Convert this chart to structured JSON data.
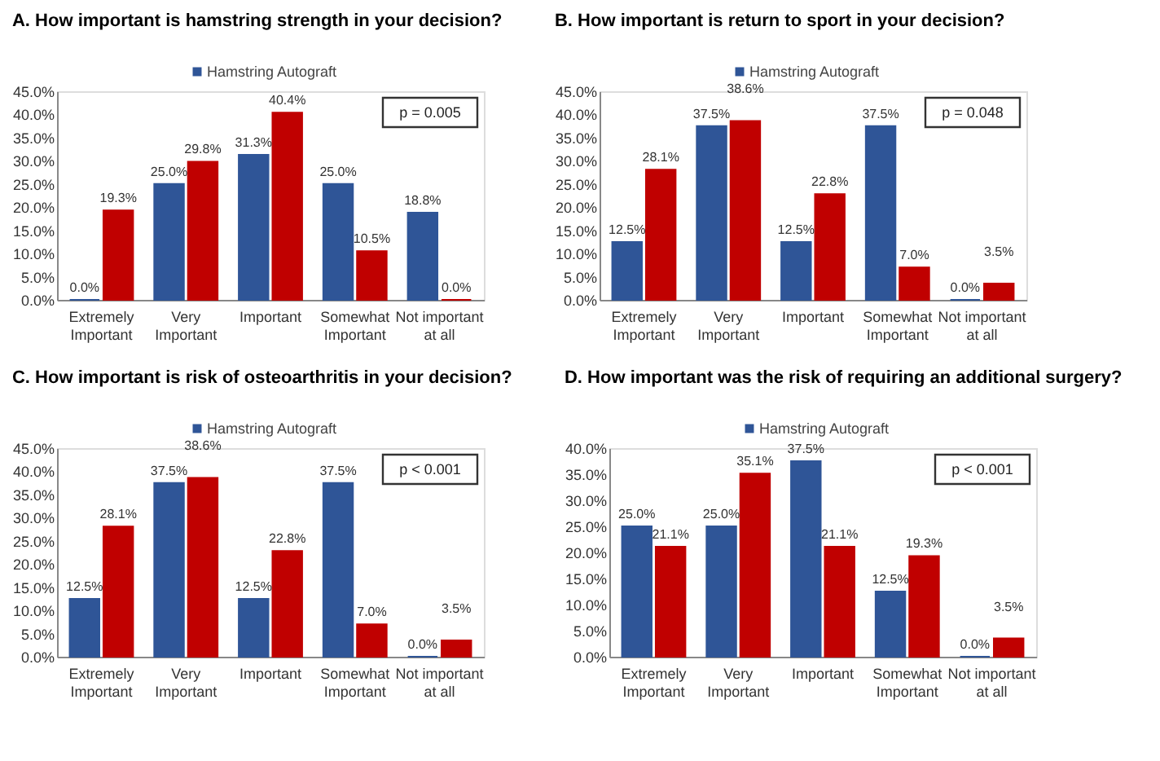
{
  "chart_data": [
    {
      "type": "bar",
      "title": "A. How important is hamstring strength in your decision?",
      "categories": [
        "Extremely Important",
        "Very Important",
        "Important",
        "Somewhat Important",
        "Not important at all"
      ],
      "ylim": [
        0,
        45
      ],
      "yticks": [
        {
          "value": 0,
          "label": "0.0%"
        },
        {
          "value": 5,
          "label": "5.0%"
        },
        {
          "value": 10,
          "label": "10.0%"
        },
        {
          "value": 15,
          "label": "15.0%"
        },
        {
          "value": 20,
          "label": "20.0%"
        },
        {
          "value": 25,
          "label": "25.0%"
        },
        {
          "value": 30,
          "label": "30.0%"
        },
        {
          "value": 35,
          "label": "35.0%"
        },
        {
          "value": 40,
          "label": "40.0%"
        },
        {
          "value": 45,
          "label": "45.0%"
        }
      ],
      "grid": false,
      "legend": "top",
      "annotations": [
        "p = 0.005"
      ],
      "series": [
        {
          "name": "Hamstring Autograft",
          "color": "#2f5597",
          "values": [
            0.0,
            25.0,
            31.3,
            25.0,
            18.8
          ],
          "value_labels": [
            "0.0%",
            "25.0%",
            "31.3%",
            "25.0%",
            "18.8%"
          ]
        },
        {
          "color": "#c00000",
          "values": [
            19.3,
            29.8,
            40.4,
            10.5,
            0.0
          ],
          "value_labels": [
            "19.3%",
            "29.8%",
            "40.4%",
            "10.5%",
            "0.0%"
          ]
        }
      ]
    },
    {
      "type": "bar",
      "title": "B. How important is return to sport in your decision?",
      "categories": [
        "Extremely Important",
        "Very Important",
        "Important",
        "Somewhat Important",
        "Not important at all"
      ],
      "ylim": [
        0,
        45
      ],
      "yticks": [
        {
          "value": 0,
          "label": "0.0%"
        },
        {
          "value": 5,
          "label": "5.0%"
        },
        {
          "value": 10,
          "label": "10.0%"
        },
        {
          "value": 15,
          "label": "15.0%"
        },
        {
          "value": 20,
          "label": "20.0%"
        },
        {
          "value": 25,
          "label": "25.0%"
        },
        {
          "value": 30,
          "label": "30.0%"
        },
        {
          "value": 35,
          "label": "35.0%"
        },
        {
          "value": 40,
          "label": "40.0%"
        },
        {
          "value": 45,
          "label": "45.0%"
        }
      ],
      "grid": false,
      "legend": "top",
      "annotations": [
        "p = 0.048"
      ],
      "series": [
        {
          "name": "Hamstring Autograft",
          "color": "#2f5597",
          "values": [
            12.5,
            37.5,
            12.5,
            37.5,
            0.0
          ],
          "value_labels": [
            "12.5%",
            "37.5%",
            "12.5%",
            "37.5%",
            "0.0%"
          ]
        },
        {
          "color": "#c00000",
          "values": [
            28.1,
            38.6,
            22.8,
            7.0,
            3.5
          ],
          "value_labels": [
            "28.1%",
            "38.6%",
            "22.8%",
            "7.0%",
            "3.5%"
          ]
        }
      ]
    },
    {
      "type": "bar",
      "title": "C. How important is risk of osteoarthritis in your decision?",
      "categories": [
        "Extremely Important",
        "Very Important",
        "Important",
        "Somewhat Important",
        "Not important at all"
      ],
      "ylim": [
        0,
        45
      ],
      "yticks": [
        {
          "value": 0,
          "label": "0.0%"
        },
        {
          "value": 5,
          "label": "5.0%"
        },
        {
          "value": 10,
          "label": "10.0%"
        },
        {
          "value": 15,
          "label": "15.0%"
        },
        {
          "value": 20,
          "label": "20.0%"
        },
        {
          "value": 25,
          "label": "25.0%"
        },
        {
          "value": 30,
          "label": "30.0%"
        },
        {
          "value": 35,
          "label": "35.0%"
        },
        {
          "value": 40,
          "label": "40.0%"
        },
        {
          "value": 45,
          "label": "45.0%"
        }
      ],
      "grid": false,
      "legend": "top",
      "annotations": [
        "p < 0.001"
      ],
      "series": [
        {
          "name": "Hamstring Autograft",
          "color": "#2f5597",
          "values": [
            12.5,
            37.5,
            12.5,
            37.5,
            0.0
          ],
          "value_labels": [
            "12.5%",
            "37.5%",
            "12.5%",
            "37.5%",
            "0.0%"
          ]
        },
        {
          "color": "#c00000",
          "values": [
            28.1,
            38.6,
            22.8,
            7.0,
            3.5
          ],
          "value_labels": [
            "28.1%",
            "38.6%",
            "22.8%",
            "7.0%",
            "3.5%"
          ]
        }
      ]
    },
    {
      "type": "bar",
      "title": "D. How important was the risk of requiring an additional surgery?",
      "categories": [
        "Extremely Important",
        "Very Important",
        "Important",
        "Somewhat Important",
        "Not important at all"
      ],
      "ylim": [
        0,
        40
      ],
      "yticks": [
        {
          "value": 0,
          "label": "0.0%"
        },
        {
          "value": 5,
          "label": "5.0%"
        },
        {
          "value": 10,
          "label": "10.0%"
        },
        {
          "value": 15,
          "label": "15.0%"
        },
        {
          "value": 20,
          "label": "20.0%"
        },
        {
          "value": 25,
          "label": "25.0%"
        },
        {
          "value": 30,
          "label": "30.0%"
        },
        {
          "value": 35,
          "label": "35.0%"
        },
        {
          "value": 40,
          "label": "40.0%"
        }
      ],
      "grid": false,
      "legend": "top",
      "annotations": [
        "p < 0.001"
      ],
      "series": [
        {
          "name": "Hamstring Autograft",
          "color": "#2f5597",
          "values": [
            25.0,
            25.0,
            37.5,
            12.5,
            0.0
          ],
          "value_labels": [
            "25.0%",
            "25.0%",
            "37.5%",
            "12.5%",
            "0.0%"
          ]
        },
        {
          "color": "#c00000",
          "values": [
            21.1,
            35.1,
            21.1,
            19.3,
            3.5
          ],
          "value_labels": [
            "21.1%",
            "35.1%",
            "21.1%",
            "19.3%",
            "3.5%"
          ]
        }
      ]
    }
  ]
}
